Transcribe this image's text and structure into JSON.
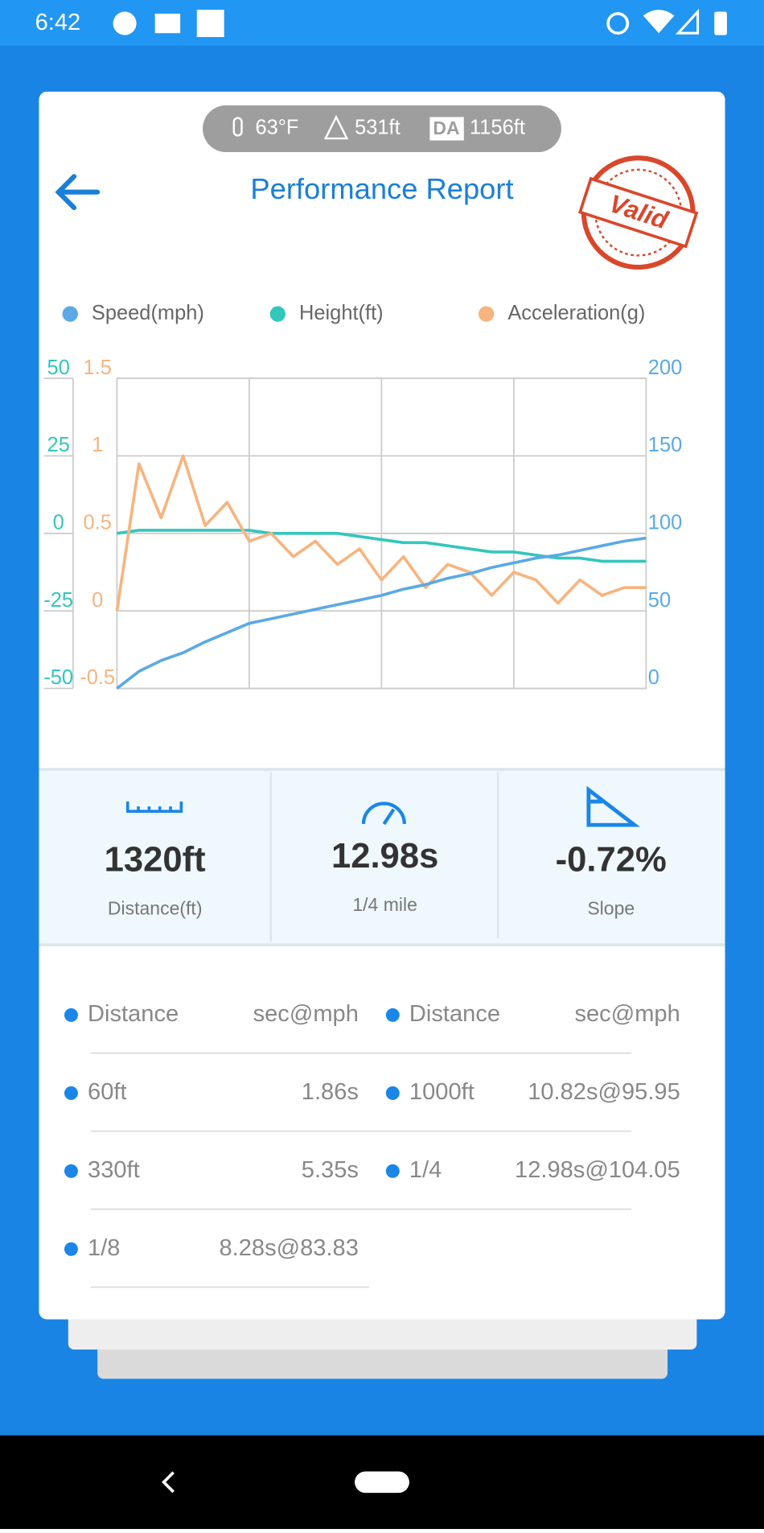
{
  "status_bar": {
    "time": "6:42"
  },
  "conditions": {
    "temperature": "63°F",
    "altitude": "531ft",
    "da_badge": "DA",
    "density_altitude": "1156ft"
  },
  "header": {
    "title": "Performance Report",
    "stamp": "Valid"
  },
  "chart_data": {
    "type": "line",
    "series": [
      {
        "name": "Speed(mph)",
        "color": "#5aa9e6",
        "axis": "y2",
        "values": [
          0,
          11,
          18,
          23,
          30,
          36,
          42,
          45,
          48,
          51,
          54,
          57,
          60,
          64,
          67,
          71,
          74,
          78,
          81,
          84,
          86,
          89,
          92,
          95,
          97
        ]
      },
      {
        "name": "Height(ft)",
        "color": "#33c6bd",
        "axis": "y",
        "values": [
          0,
          1,
          1,
          1,
          1,
          1,
          1,
          0,
          0,
          0,
          0,
          -1,
          -2,
          -3,
          -3,
          -4,
          -5,
          -6,
          -6,
          -7,
          -8,
          -8,
          -9,
          -9,
          -9
        ]
      },
      {
        "name": "Acceleration(g)",
        "color": "#f7b47f",
        "axis": "y3",
        "values": [
          0,
          0.95,
          0.6,
          1.0,
          0.55,
          0.7,
          0.45,
          0.5,
          0.35,
          0.45,
          0.3,
          0.4,
          0.2,
          0.35,
          0.15,
          0.3,
          0.25,
          0.1,
          0.25,
          0.2,
          0.05,
          0.2,
          0.1,
          0.15,
          0.15
        ]
      }
    ],
    "ylim": [
      -50,
      50
    ],
    "yticks": [
      -50,
      -25,
      0,
      25,
      50
    ],
    "y3lim": [
      -0.5,
      1.5
    ],
    "y3ticks": [
      -0.5,
      0,
      0.5,
      1,
      1.5
    ],
    "y2lim": [
      0,
      200
    ],
    "y2ticks": [
      0,
      50,
      100,
      150,
      200
    ],
    "grid": true
  },
  "stats": [
    {
      "value": "1320ft",
      "label": "Distance(ft)"
    },
    {
      "value": "12.98s",
      "label": "1/4 mile"
    },
    {
      "value": "-0.72%",
      "label": "Slope"
    }
  ],
  "table": {
    "header": [
      "Distance",
      "sec@mph",
      "Distance",
      "sec@mph"
    ],
    "rows": [
      [
        "60ft",
        "1.86s",
        "1000ft",
        "10.82s@95.95"
      ],
      [
        "330ft",
        "5.35s",
        "1/4",
        "12.98s@104.05"
      ],
      [
        "1/8",
        "8.28s@83.83"
      ]
    ]
  }
}
